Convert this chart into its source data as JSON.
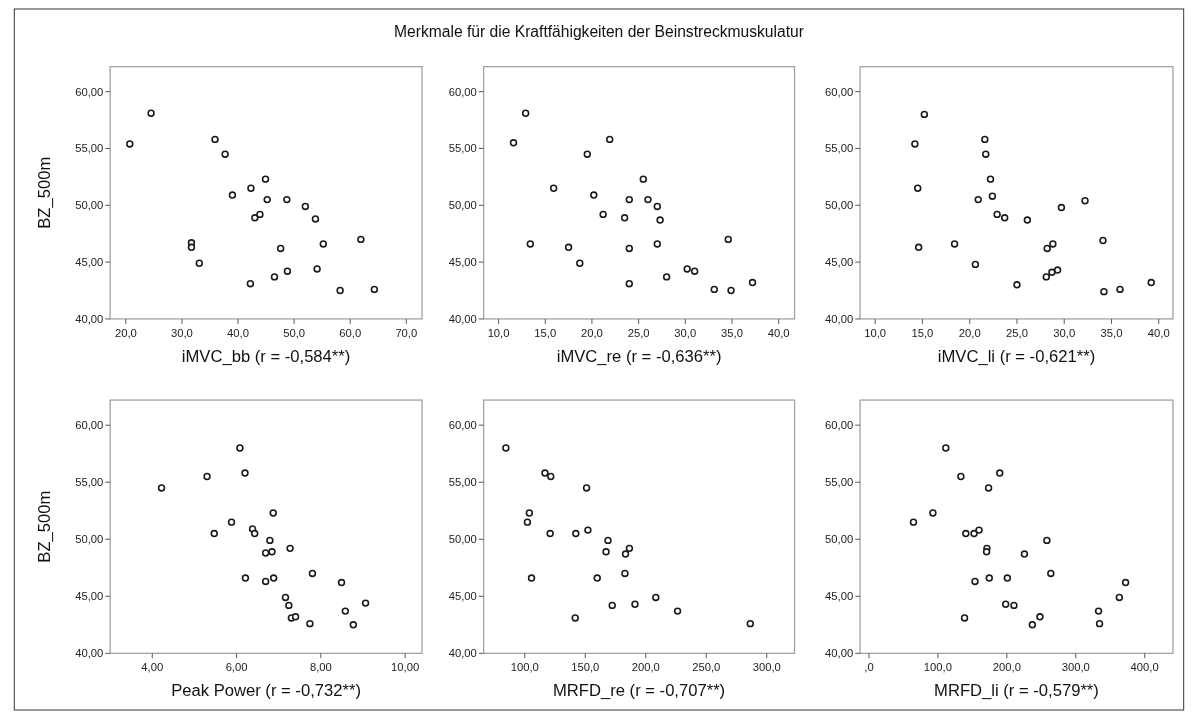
{
  "chart_data": [
    {
      "type": "other",
      "title": "Merkmale für die Kraftfähigkeiten der Beinstreckmuskulatur"
    },
    {
      "type": "scatter",
      "xlabel": "iMVC_bb (r = -0,584**)",
      "ylabel": "BZ_500m",
      "marker": "circle",
      "color": "#1a1a1a",
      "x": [
        20.7,
        24.5,
        35.9,
        37.7,
        39.0,
        42.3,
        44.9,
        45.2,
        48.7,
        52.0,
        53.8,
        43.0,
        43.9,
        31.7,
        31.7,
        33.1,
        47.6,
        55.2,
        61.9,
        42.2,
        46.5,
        48.8,
        54.1,
        58.2,
        64.3
      ],
      "values": [
        55.4,
        58.1,
        55.8,
        54.5,
        50.9,
        51.5,
        52.3,
        50.5,
        50.5,
        49.9,
        48.8,
        48.9,
        49.2,
        46.7,
        46.3,
        44.9,
        46.2,
        46.6,
        47.0,
        43.1,
        43.7,
        44.2,
        44.4,
        42.5,
        42.6
      ],
      "xlim": [
        17.2,
        72.8
      ],
      "xticks": [
        {
          "value": 20,
          "label": "20,0"
        },
        {
          "value": 30,
          "label": "30,0"
        },
        {
          "value": 40,
          "label": "40,0"
        },
        {
          "value": 50,
          "label": "50,0"
        },
        {
          "value": 60,
          "label": "60,0"
        },
        {
          "value": 70,
          "label": "70,0"
        }
      ],
      "ylim": [
        40,
        62.2
      ],
      "yticks": [
        {
          "value": 40,
          "label": "40,00"
        },
        {
          "value": 45,
          "label": "45,00"
        },
        {
          "value": 50,
          "label": "50,00"
        },
        {
          "value": 55,
          "label": "55,00"
        },
        {
          "value": 60,
          "label": "60,00"
        }
      ]
    },
    {
      "type": "scatter",
      "xlabel": "iMVC_re (r = -0,636**)",
      "marker": "circle",
      "color": "#1a1a1a",
      "x": [
        11.6,
        12.9,
        13.4,
        15.9,
        17.5,
        18.7,
        19.5,
        20.2,
        21.2,
        21.9,
        23.5,
        24.0,
        24.0,
        24.0,
        25.5,
        26.0,
        27.0,
        27.3,
        27.0,
        28.0,
        30.2,
        31.0,
        33.1,
        34.6,
        34.9,
        37.2
      ],
      "values": [
        55.5,
        58.1,
        46.6,
        51.5,
        46.3,
        44.9,
        54.5,
        50.9,
        49.2,
        55.8,
        48.9,
        50.5,
        46.2,
        43.1,
        52.3,
        50.5,
        49.9,
        48.7,
        46.6,
        43.7,
        44.4,
        44.2,
        42.6,
        47.0,
        42.5,
        43.2
      ],
      "xlim": [
        8.4,
        41.7
      ],
      "xticks": [
        {
          "value": 10,
          "label": "10,0"
        },
        {
          "value": 15,
          "label": "15,0"
        },
        {
          "value": 20,
          "label": "20,0"
        },
        {
          "value": 25,
          "label": "25,0"
        },
        {
          "value": 30,
          "label": "30,0"
        },
        {
          "value": 35,
          "label": "35,0"
        },
        {
          "value": 40,
          "label": "40,0"
        }
      ],
      "ylim": [
        40,
        62.2
      ],
      "yticks": [
        {
          "value": 40,
          "label": "40,00"
        },
        {
          "value": 45,
          "label": "45,00"
        },
        {
          "value": 50,
          "label": "50,00"
        },
        {
          "value": 55,
          "label": "55,00"
        },
        {
          "value": 60,
          "label": "60,00"
        }
      ]
    },
    {
      "type": "scatter",
      "xlabel": "iMVC_li (r = -0,621**)",
      "marker": "circle",
      "color": "#1a1a1a",
      "x": [
        14.2,
        15.2,
        14.5,
        14.6,
        18.4,
        20.6,
        20.9,
        21.6,
        21.7,
        22.2,
        22.4,
        22.9,
        23.7,
        25.0,
        26.1,
        28.1,
        28.2,
        28.7,
        28.8,
        29.3,
        29.7,
        32.2,
        34.1,
        34.2,
        35.9,
        39.2
      ],
      "values": [
        55.4,
        58.0,
        51.5,
        46.3,
        46.6,
        44.8,
        50.5,
        55.8,
        54.5,
        52.3,
        50.8,
        49.2,
        48.9,
        43.0,
        48.7,
        43.7,
        46.2,
        44.1,
        46.6,
        44.3,
        49.8,
        50.4,
        46.9,
        42.4,
        42.6,
        43.2
      ],
      "xlim": [
        8.4,
        41.5
      ],
      "xticks": [
        {
          "value": 10,
          "label": "10,0"
        },
        {
          "value": 15,
          "label": "15,0"
        },
        {
          "value": 20,
          "label": "20,0"
        },
        {
          "value": 25,
          "label": "25,0"
        },
        {
          "value": 30,
          "label": "30,0"
        },
        {
          "value": 35,
          "label": "35,0"
        },
        {
          "value": 40,
          "label": "40,0"
        }
      ],
      "ylim": [
        40,
        62.2
      ],
      "yticks": [
        {
          "value": 40,
          "label": "40,00"
        },
        {
          "value": 45,
          "label": "45,00"
        },
        {
          "value": 50,
          "label": "50,00"
        },
        {
          "value": 55,
          "label": "55,00"
        },
        {
          "value": 60,
          "label": "60,00"
        }
      ]
    },
    {
      "type": "scatter",
      "xlabel": "Peak Power (r = -0,732**)",
      "ylabel": "BZ_500m",
      "marker": "circle",
      "color": "#1a1a1a",
      "x": [
        4.22,
        5.3,
        6.08,
        6.2,
        5.47,
        5.88,
        6.38,
        6.43,
        6.87,
        6.79,
        6.69,
        6.84,
        7.27,
        6.21,
        6.69,
        6.88,
        7.8,
        8.49,
        7.16,
        7.24,
        7.3,
        7.4,
        7.74,
        8.58,
        8.77,
        9.06
      ],
      "values": [
        54.5,
        55.5,
        58.0,
        55.8,
        50.5,
        51.5,
        50.9,
        50.5,
        52.3,
        49.9,
        48.8,
        48.9,
        49.2,
        46.6,
        46.3,
        46.6,
        47.0,
        46.2,
        44.9,
        44.2,
        43.1,
        43.2,
        42.6,
        43.7,
        42.5,
        44.4
      ],
      "xlim": [
        3.0,
        10.4
      ],
      "xticks": [
        {
          "value": 4,
          "label": "4,00"
        },
        {
          "value": 6,
          "label": "6,00"
        },
        {
          "value": 8,
          "label": "8,00"
        },
        {
          "value": 10,
          "label": "10,00"
        }
      ],
      "ylim": [
        40,
        62.2
      ],
      "yticks": [
        {
          "value": 40,
          "label": "40,00"
        },
        {
          "value": 45,
          "label": "45,00"
        },
        {
          "value": 50,
          "label": "50,00"
        },
        {
          "value": 55,
          "label": "55,00"
        },
        {
          "value": 60,
          "label": "60,00"
        }
      ]
    },
    {
      "type": "scatter",
      "xlabel": "MRFD_re (r = -0,707**)",
      "marker": "circle",
      "color": "#1a1a1a",
      "x": [
        84.4,
        116.7,
        121.5,
        151.1,
        103.8,
        102.2,
        121.0,
        142.2,
        152.2,
        168.8,
        167.2,
        183.3,
        186.5,
        105.6,
        159.9,
        182.8,
        208.3,
        172.3,
        191.1,
        226.3,
        141.7,
        286.4
      ],
      "values": [
        58.0,
        55.8,
        55.5,
        54.5,
        52.3,
        51.5,
        50.5,
        50.5,
        50.8,
        49.9,
        48.9,
        48.7,
        49.2,
        46.6,
        46.6,
        47.0,
        44.9,
        44.2,
        44.3,
        43.7,
        43.1,
        42.6
      ],
      "xlim": [
        66,
        323
      ],
      "xticks": [
        {
          "value": 100,
          "label": "100,0"
        },
        {
          "value": 150,
          "label": "150,0"
        },
        {
          "value": 200,
          "label": "200,0"
        },
        {
          "value": 250,
          "label": "250,0"
        },
        {
          "value": 300,
          "label": "300,0"
        }
      ],
      "ylim": [
        40,
        62.2
      ],
      "yticks": [
        {
          "value": 40,
          "label": "40,00"
        },
        {
          "value": 45,
          "label": "45,00"
        },
        {
          "value": 50,
          "label": "50,00"
        },
        {
          "value": 55,
          "label": "55,00"
        },
        {
          "value": 60,
          "label": "60,00"
        }
      ]
    },
    {
      "type": "scatter",
      "xlabel": "MRFD_li (r = -0,579**)",
      "marker": "circle",
      "color": "#1a1a1a",
      "x": [
        64.5,
        92.7,
        111.4,
        133.3,
        140.5,
        152.4,
        159.6,
        173.5,
        189.7,
        171.1,
        170.6,
        153.8,
        174.5,
        200.7,
        225.5,
        258.1,
        263.8,
        138.6,
        198.3,
        210.3,
        237.0,
        248.0,
        333.1,
        334.5,
        363.2,
        372.3
      ],
      "values": [
        51.5,
        52.3,
        58.0,
        55.5,
        50.5,
        50.5,
        50.8,
        54.5,
        55.8,
        49.2,
        48.9,
        46.3,
        46.6,
        46.6,
        48.7,
        49.9,
        47.0,
        43.1,
        44.3,
        44.2,
        42.5,
        43.2,
        43.7,
        42.6,
        44.9,
        46.2
      ],
      "xlim": [
        -13,
        441
      ],
      "xticks": [
        {
          "value": 0,
          "label": ",0"
        },
        {
          "value": 100,
          "label": "100,0"
        },
        {
          "value": 200,
          "label": "200,0"
        },
        {
          "value": 300,
          "label": "300,0"
        },
        {
          "value": 400,
          "label": "400,0"
        }
      ],
      "ylim": [
        40,
        62.2
      ],
      "yticks": [
        {
          "value": 40,
          "label": "40,00"
        },
        {
          "value": 45,
          "label": "45,00"
        },
        {
          "value": 50,
          "label": "50,00"
        },
        {
          "value": 55,
          "label": "55,00"
        },
        {
          "value": 60,
          "label": "60,00"
        }
      ]
    }
  ]
}
